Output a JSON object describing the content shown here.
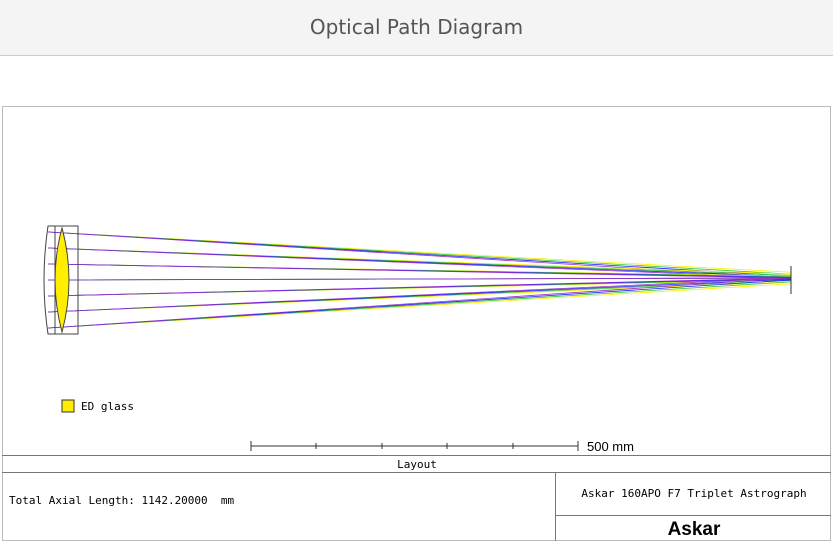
{
  "header": {
    "title": "Optical Path Diagram"
  },
  "diagram": {
    "legend": [
      "ED glass"
    ],
    "scale_label": "500 mm"
  },
  "footer": {
    "caption": "Layout",
    "axial_length": "Total Axial Length: 1142.20000  mm",
    "model": "Askar 160APO F7 Triplet Astrograph",
    "logo": "Askar"
  }
}
